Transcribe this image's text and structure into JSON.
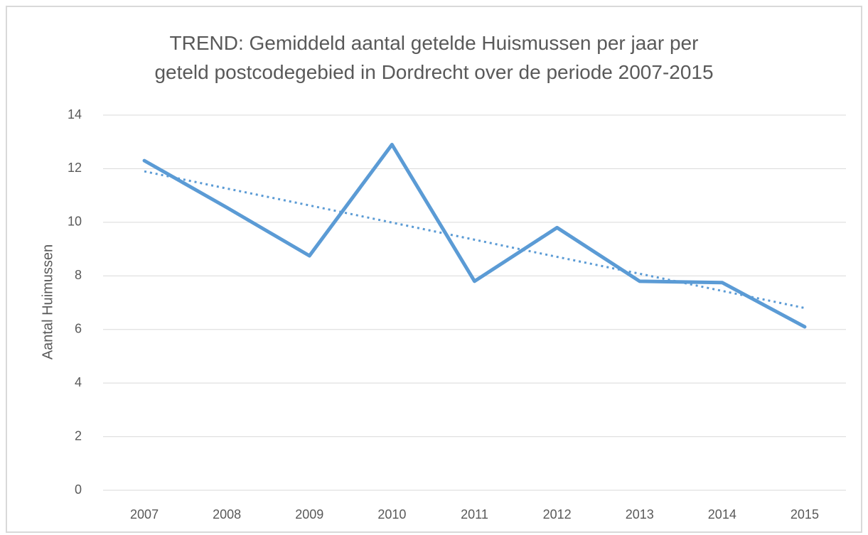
{
  "chart_data": {
    "type": "line",
    "title": "TREND: Gemiddeld aantal getelde Huismussen per jaar per\ngeteld postcodegebied in Dordrecht over de periode 2007-2015",
    "y_label": "Aantal Huimussen",
    "categories": [
      "2007",
      "2008",
      "2009",
      "2010",
      "2011",
      "2012",
      "2013",
      "2014",
      "2015"
    ],
    "series": [
      {
        "color": "#5b9bd5",
        "style": "solid",
        "values": [
          12.3,
          10.55,
          8.75,
          12.9,
          7.8,
          9.8,
          7.8,
          7.75,
          6.1
        ]
      },
      {
        "color": "#5b9bd5",
        "style": "dotted",
        "values": [
          11.9,
          11.26,
          10.63,
          9.99,
          9.35,
          8.71,
          8.08,
          7.44,
          6.8
        ]
      }
    ],
    "ylim": [
      0,
      14
    ],
    "yticks": [
      0,
      2,
      4,
      6,
      8,
      10,
      12,
      14
    ],
    "grid": true
  }
}
